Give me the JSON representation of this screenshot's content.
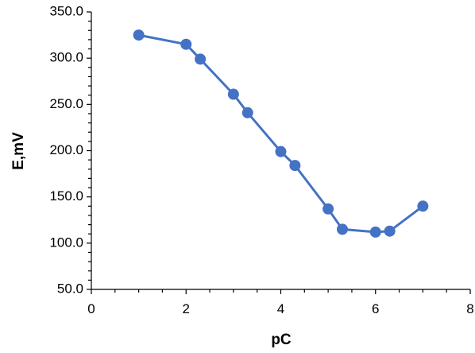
{
  "chart_data": {
    "type": "line",
    "title": "",
    "xlabel": "pC",
    "ylabel": "E,mV",
    "xlim": [
      0,
      8
    ],
    "ylim": [
      50,
      350
    ],
    "x_ticks": [
      "0",
      "2",
      "4",
      "6",
      "8"
    ],
    "y_ticks": [
      "50.0",
      "100.0",
      "150.0",
      "200.0",
      "250.0",
      "300.0",
      "350.0"
    ],
    "x_minor_step": 0.5,
    "y_minor_step": 10,
    "grid": false,
    "line_color": "#4472C4",
    "marker": "circle",
    "series": [
      {
        "x": [
          1,
          2,
          2.3,
          3,
          3.3,
          4,
          4.3,
          5,
          5.3,
          6,
          6.3,
          7
        ],
        "y": [
          325,
          315,
          299,
          261,
          241,
          199,
          184,
          137,
          115,
          112,
          113,
          140
        ]
      }
    ]
  }
}
